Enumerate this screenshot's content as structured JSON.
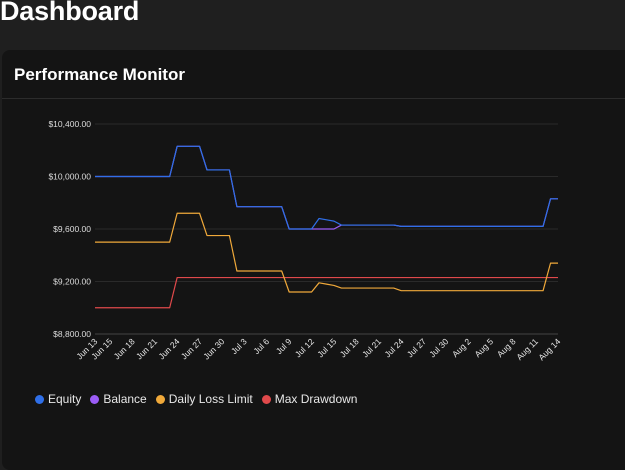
{
  "page": {
    "title": "Dashboard"
  },
  "card": {
    "title": "Performance Monitor"
  },
  "chart_data": {
    "type": "line",
    "ylim": [
      8800,
      10400
    ],
    "yticks": [
      10400,
      10000,
      9600,
      9200,
      8800
    ],
    "ytick_labels": [
      "$10,400.00",
      "$10,000.00",
      "$9,600.00",
      "$9,200.00",
      "$8,800.00"
    ],
    "x": [
      "Jun 13",
      "Jun 14",
      "Jun 15",
      "Jun 16",
      "Jun 17",
      "Jun 18",
      "Jun 19",
      "Jun 20",
      "Jun 21",
      "Jun 22",
      "Jun 23",
      "Jun 24",
      "Jun 25",
      "Jun 26",
      "Jun 27",
      "Jun 28",
      "Jun 29",
      "Jun 30",
      "Jul 1",
      "Jul 2",
      "Jul 3",
      "Jul 4",
      "Jul 5",
      "Jul 6",
      "Jul 7",
      "Jul 8",
      "Jul 9",
      "Jul 10",
      "Jul 11",
      "Jul 12",
      "Jul 13",
      "Jul 14",
      "Jul 15",
      "Jul 16",
      "Jul 17",
      "Jul 18",
      "Jul 19",
      "Jul 20",
      "Jul 21",
      "Jul 22",
      "Jul 23",
      "Jul 24",
      "Jul 25",
      "Jul 26",
      "Jul 27",
      "Jul 28",
      "Jul 29",
      "Jul 30",
      "Jul 31",
      "Aug 1",
      "Aug 2",
      "Aug 3",
      "Aug 4",
      "Aug 5",
      "Aug 6",
      "Aug 7",
      "Aug 8",
      "Aug 9",
      "Aug 10",
      "Aug 11",
      "Aug 12",
      "Aug 13",
      "Aug 14"
    ],
    "xtick_labels": [
      "Jun 13",
      "Jun 15",
      "Jun 18",
      "Jun 21",
      "Jun 24",
      "Jun 27",
      "Jun 30",
      "Jul 3",
      "Jul 6",
      "Jul 9",
      "Jul 12",
      "Jul 15",
      "Jul 18",
      "Jul 21",
      "Jul 24",
      "Jul 27",
      "Jul 30",
      "Aug 2",
      "Aug 5",
      "Aug 8",
      "Aug 11",
      "Aug 14"
    ],
    "grid": true,
    "legend_position": "bottom-left",
    "series": [
      {
        "name": "Equity",
        "color": "#2f6fe8",
        "values": [
          10000,
          10000,
          10000,
          10000,
          10000,
          10000,
          10000,
          10000,
          10000,
          10000,
          10000,
          10230,
          10230,
          10230,
          10230,
          10050,
          10050,
          10050,
          10050,
          9770,
          9770,
          9770,
          9770,
          9770,
          9770,
          9770,
          9600,
          9600,
          9600,
          9600,
          9680,
          9670,
          9660,
          9630,
          9630,
          9630,
          9630,
          9630,
          9630,
          9630,
          9630,
          9620,
          9620,
          9620,
          9620,
          9620,
          9620,
          9620,
          9620,
          9620,
          9620,
          9620,
          9620,
          9620,
          9620,
          9620,
          9620,
          9620,
          9620,
          9620,
          9620,
          9830,
          9830
        ]
      },
      {
        "name": "Balance",
        "color": "#9b5cf6",
        "values": [
          10000,
          10000,
          10000,
          10000,
          10000,
          10000,
          10000,
          10000,
          10000,
          10000,
          10000,
          10230,
          10230,
          10230,
          10230,
          10050,
          10050,
          10050,
          10050,
          9770,
          9770,
          9770,
          9770,
          9770,
          9770,
          9770,
          9600,
          9600,
          9600,
          9600,
          9600,
          9600,
          9600,
          9630,
          9630,
          9630,
          9630,
          9630,
          9630,
          9630,
          9630,
          9620,
          9620,
          9620,
          9620,
          9620,
          9620,
          9620,
          9620,
          9620,
          9620,
          9620,
          9620,
          9620,
          9620,
          9620,
          9620,
          9620,
          9620,
          9620,
          9620,
          9830,
          9830
        ]
      },
      {
        "name": "Daily Loss Limit",
        "color": "#f0a93a",
        "values": [
          9500,
          9500,
          9500,
          9500,
          9500,
          9500,
          9500,
          9500,
          9500,
          9500,
          9500,
          9720,
          9720,
          9720,
          9720,
          9550,
          9550,
          9550,
          9550,
          9280,
          9280,
          9280,
          9280,
          9280,
          9280,
          9280,
          9120,
          9120,
          9120,
          9120,
          9190,
          9180,
          9170,
          9150,
          9150,
          9150,
          9150,
          9150,
          9150,
          9150,
          9150,
          9130,
          9130,
          9130,
          9130,
          9130,
          9130,
          9130,
          9130,
          9130,
          9130,
          9130,
          9130,
          9130,
          9130,
          9130,
          9130,
          9130,
          9130,
          9130,
          9130,
          9340,
          9340
        ]
      },
      {
        "name": "Max Drawdown",
        "color": "#e0494b",
        "values": [
          9000,
          9000,
          9000,
          9000,
          9000,
          9000,
          9000,
          9000,
          9000,
          9000,
          9000,
          9230,
          9230,
          9230,
          9230,
          9230,
          9230,
          9230,
          9230,
          9230,
          9230,
          9230,
          9230,
          9230,
          9230,
          9230,
          9230,
          9230,
          9230,
          9230,
          9230,
          9230,
          9230,
          9230,
          9230,
          9230,
          9230,
          9230,
          9230,
          9230,
          9230,
          9230,
          9230,
          9230,
          9230,
          9230,
          9230,
          9230,
          9230,
          9230,
          9230,
          9230,
          9230,
          9230,
          9230,
          9230,
          9230,
          9230,
          9230,
          9230,
          9230,
          9230,
          9230
        ]
      }
    ]
  }
}
